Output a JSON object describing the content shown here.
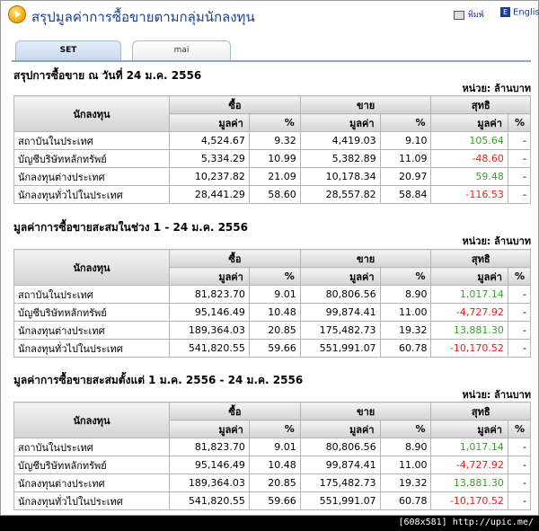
{
  "header": {
    "title": "สรุปมูลค่าการซื้อขายตามกลุ่มนักลงทุน",
    "print_label": "พิมพ์",
    "english_label": "English"
  },
  "tabs": [
    {
      "label": "SET",
      "active": true
    },
    {
      "label": "mai",
      "active": false
    }
  ],
  "unit_label": "หน่วย: ล้านบาท",
  "columns": {
    "investor": "นักลงทุน",
    "buy": "ซื้อ",
    "sell": "ขาย",
    "net": "สุทธิ",
    "value": "มูลค่า",
    "percent": "%"
  },
  "sections": [
    {
      "title": "สรุปการซื้อขาย ณ วันที่ 24 ม.ค. 2556",
      "rows": [
        {
          "investor": "สถาบันในประเทศ",
          "buy_value": "4,524.67",
          "buy_pct": "9.32",
          "sell_value": "4,419.03",
          "sell_pct": "9.10",
          "net_value": "105.64",
          "net_pct": "-",
          "net_sign": "pos"
        },
        {
          "investor": "บัญชีบริษัทหลักทรัพย์",
          "buy_value": "5,334.29",
          "buy_pct": "10.99",
          "sell_value": "5,382.89",
          "sell_pct": "11.09",
          "net_value": "-48.60",
          "net_pct": "-",
          "net_sign": "neg"
        },
        {
          "investor": "นักลงทุนต่างประเทศ",
          "buy_value": "10,237.82",
          "buy_pct": "21.09",
          "sell_value": "10,178.34",
          "sell_pct": "20.97",
          "net_value": "59.48",
          "net_pct": "-",
          "net_sign": "pos"
        },
        {
          "investor": "นักลงทุนทั่วไปในประเทศ",
          "buy_value": "28,441.29",
          "buy_pct": "58.60",
          "sell_value": "28,557.82",
          "sell_pct": "58.84",
          "net_value": "-116.53",
          "net_pct": "-",
          "net_sign": "neg"
        }
      ]
    },
    {
      "title": "มูลค่าการซื้อขายสะสมในช่วง 1 - 24 ม.ค. 2556",
      "rows": [
        {
          "investor": "สถาบันในประเทศ",
          "buy_value": "81,823.70",
          "buy_pct": "9.01",
          "sell_value": "80,806.56",
          "sell_pct": "8.90",
          "net_value": "1,017.14",
          "net_pct": "-",
          "net_sign": "pos"
        },
        {
          "investor": "บัญชีบริษัทหลักทรัพย์",
          "buy_value": "95,146.49",
          "buy_pct": "10.48",
          "sell_value": "99,874.41",
          "sell_pct": "11.00",
          "net_value": "-4,727.92",
          "net_pct": "-",
          "net_sign": "neg"
        },
        {
          "investor": "นักลงทุนต่างประเทศ",
          "buy_value": "189,364.03",
          "buy_pct": "20.85",
          "sell_value": "175,482.73",
          "sell_pct": "19.32",
          "net_value": "13,881.30",
          "net_pct": "-",
          "net_sign": "pos"
        },
        {
          "investor": "นักลงทุนทั่วไปในประเทศ",
          "buy_value": "541,820.55",
          "buy_pct": "59.66",
          "sell_value": "551,991.07",
          "sell_pct": "60.78",
          "net_value": "-10,170.52",
          "net_pct": "-",
          "net_sign": "neg"
        }
      ]
    },
    {
      "title": "มูลค่าการซื้อขายสะสมตั้งแต่ 1 ม.ค. 2556 - 24 ม.ค. 2556",
      "rows": [
        {
          "investor": "สถาบันในประเทศ",
          "buy_value": "81,823.70",
          "buy_pct": "9.01",
          "sell_value": "80,806.56",
          "sell_pct": "8.90",
          "net_value": "1,017.14",
          "net_pct": "-",
          "net_sign": "pos"
        },
        {
          "investor": "บัญชีบริษัทหลักทรัพย์",
          "buy_value": "95,146.49",
          "buy_pct": "10.48",
          "sell_value": "99,874.41",
          "sell_pct": "11.00",
          "net_value": "-4,727.92",
          "net_pct": "-",
          "net_sign": "neg"
        },
        {
          "investor": "นักลงทุนต่างประเทศ",
          "buy_value": "189,364.03",
          "buy_pct": "20.85",
          "sell_value": "175,482.73",
          "sell_pct": "19.32",
          "net_value": "13,881.30",
          "net_pct": "-",
          "net_sign": "pos"
        },
        {
          "investor": "นักลงทุนทั่วไปในประเทศ",
          "buy_value": "541,820.55",
          "buy_pct": "59.66",
          "sell_value": "551,991.07",
          "sell_pct": "60.78",
          "net_value": "-10,170.52",
          "net_pct": "-",
          "net_sign": "neg"
        }
      ]
    }
  ],
  "footer_caption": "[608x581] http://upic.me/",
  "colors": {
    "positive": "#3aa12a",
    "negative": "#e8201c",
    "title": "#1a3f8f"
  }
}
